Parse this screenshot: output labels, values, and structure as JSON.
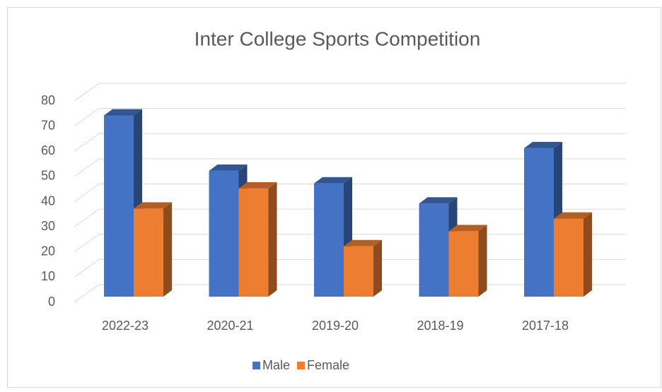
{
  "chart_data": {
    "type": "bar3d",
    "title": "Inter College Sports Competition",
    "categories": [
      "2022-23",
      "2020-21",
      "2019-20",
      "2018-19",
      "2017-18"
    ],
    "series": [
      {
        "name": "Male",
        "color": "#4472c4",
        "values": [
          72,
          50,
          45,
          37,
          59
        ]
      },
      {
        "name": "Female",
        "color": "#ed7d31",
        "values": [
          35,
          43,
          20,
          26,
          31
        ]
      }
    ],
    "ylim": [
      0,
      80
    ],
    "yticks": [
      0,
      10,
      20,
      30,
      40,
      50,
      60,
      70,
      80
    ],
    "grid": true,
    "legend": "bottom"
  }
}
